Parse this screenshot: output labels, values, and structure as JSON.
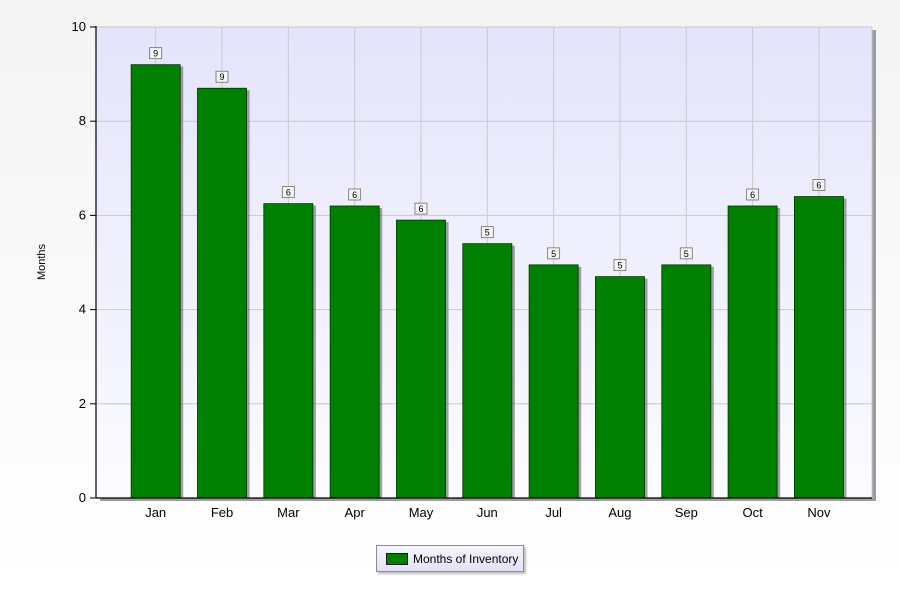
{
  "chart_data": {
    "type": "bar",
    "ylabel": "Months",
    "ylim": [
      0,
      10
    ],
    "yticks": [
      0,
      2,
      4,
      6,
      8,
      10
    ],
    "grid": true,
    "legend_position": "bottom-center",
    "categories": [
      "Jan",
      "Feb",
      "Mar",
      "Apr",
      "May",
      "Jun",
      "Jul",
      "Aug",
      "Sep",
      "Oct",
      "Nov"
    ],
    "series": [
      {
        "name": "Months of Inventory",
        "color": "#008000",
        "values": [
          9.2,
          8.7,
          6.25,
          6.2,
          5.9,
          5.4,
          4.95,
          4.7,
          4.95,
          6.2,
          6.4
        ],
        "data_labels": [
          "9",
          "9",
          "6",
          "6",
          "6",
          "5",
          "5",
          "5",
          "5",
          "6",
          "6"
        ]
      }
    ]
  }
}
